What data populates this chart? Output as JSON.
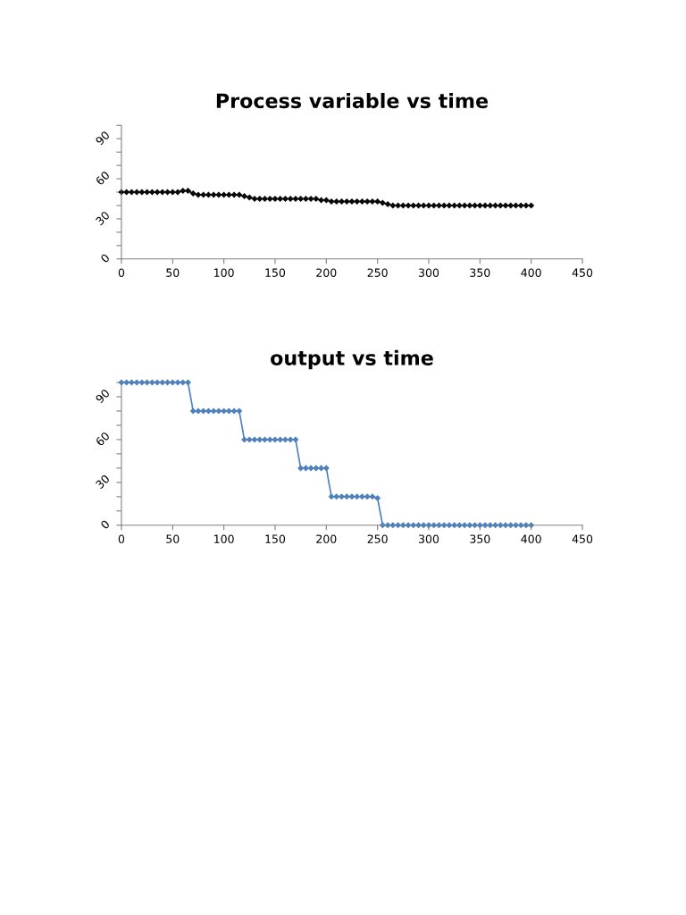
{
  "chart_data": [
    {
      "type": "line",
      "title": "Process variable vs time",
      "marker": "diamond",
      "grid": false,
      "x": [
        0,
        5,
        10,
        15,
        20,
        25,
        30,
        35,
        40,
        45,
        50,
        55,
        60,
        65,
        70,
        75,
        80,
        85,
        90,
        95,
        100,
        105,
        110,
        115,
        120,
        125,
        130,
        135,
        140,
        145,
        150,
        155,
        160,
        165,
        170,
        175,
        180,
        185,
        190,
        195,
        200,
        205,
        210,
        215,
        220,
        225,
        230,
        235,
        240,
        245,
        250,
        255,
        260,
        265,
        270,
        275,
        280,
        285,
        290,
        295,
        300,
        305,
        310,
        315,
        320,
        325,
        330,
        335,
        340,
        345,
        350,
        355,
        360,
        365,
        370,
        375,
        380,
        385,
        390,
        395,
        400
      ],
      "series": [
        {
          "color": "#0a0a0a",
          "values": [
            50,
            50,
            50,
            50,
            50,
            50,
            50,
            50,
            50,
            50,
            50,
            50,
            51,
            51,
            49,
            48,
            48,
            48,
            48,
            48,
            48,
            48,
            48,
            48,
            47,
            46,
            45,
            45,
            45,
            45,
            45,
            45,
            45,
            45,
            45,
            45,
            45,
            45,
            45,
            44,
            44,
            43,
            43,
            43,
            43,
            43,
            43,
            43,
            43,
            43,
            43,
            42,
            41,
            40,
            40,
            40,
            40,
            40,
            40,
            40,
            40,
            40,
            40,
            40,
            40,
            40,
            40,
            40,
            40,
            40,
            40,
            40,
            40,
            40,
            40,
            40,
            40,
            40,
            40,
            40,
            40
          ]
        }
      ],
      "xlim": [
        0,
        450
      ],
      "xticks": [
        0,
        50,
        100,
        150,
        200,
        250,
        300,
        350,
        400,
        450
      ],
      "ylim": [
        0,
        100
      ],
      "yticks": [
        0,
        {
          "value": 10,
          "label": null
        },
        {
          "value": 20,
          "label": null
        },
        30,
        {
          "value": 40,
          "label": null
        },
        {
          "value": 50,
          "label": null
        },
        60,
        {
          "value": 70,
          "label": null
        },
        {
          "value": 80,
          "label": null
        },
        90,
        {
          "value": 100,
          "label": null
        }
      ]
    },
    {
      "type": "line",
      "title": "output vs time",
      "marker": "diamond",
      "grid": false,
      "x": [
        0,
        5,
        10,
        15,
        20,
        25,
        30,
        35,
        40,
        45,
        50,
        55,
        60,
        65,
        70,
        75,
        80,
        85,
        90,
        95,
        100,
        105,
        110,
        115,
        120,
        125,
        130,
        135,
        140,
        145,
        150,
        155,
        160,
        165,
        170,
        175,
        180,
        185,
        190,
        195,
        200,
        205,
        210,
        215,
        220,
        225,
        230,
        235,
        240,
        245,
        250,
        255,
        260,
        265,
        270,
        275,
        280,
        285,
        290,
        295,
        300,
        305,
        310,
        315,
        320,
        325,
        330,
        335,
        340,
        345,
        350,
        355,
        360,
        365,
        370,
        375,
        380,
        385,
        390,
        395,
        400
      ],
      "series": [
        {
          "color": "#4f81bd",
          "values": [
            100,
            100,
            100,
            100,
            100,
            100,
            100,
            100,
            100,
            100,
            100,
            100,
            100,
            100,
            80,
            80,
            80,
            80,
            80,
            80,
            80,
            80,
            80,
            80,
            60,
            60,
            60,
            60,
            60,
            60,
            60,
            60,
            60,
            60,
            60,
            40,
            40,
            40,
            40,
            40,
            40,
            20,
            20,
            20,
            20,
            20,
            20,
            20,
            20,
            20,
            19,
            0,
            0,
            0,
            0,
            0,
            0,
            0,
            0,
            0,
            0,
            0,
            0,
            0,
            0,
            0,
            0,
            0,
            0,
            0,
            0,
            0,
            0,
            0,
            0,
            0,
            0,
            0,
            0,
            0,
            0
          ]
        }
      ],
      "xlim": [
        0,
        450
      ],
      "xticks": [
        0,
        50,
        100,
        150,
        200,
        250,
        300,
        350,
        400,
        450
      ],
      "ylim": [
        0,
        100
      ],
      "yticks": [
        0,
        {
          "value": 10,
          "label": null
        },
        {
          "value": 20,
          "label": null
        },
        30,
        {
          "value": 40,
          "label": null
        },
        {
          "value": 50,
          "label": null
        },
        60,
        {
          "value": 70,
          "label": null
        },
        {
          "value": 80,
          "label": null
        },
        90,
        {
          "value": 100,
          "label": null
        }
      ]
    }
  ]
}
